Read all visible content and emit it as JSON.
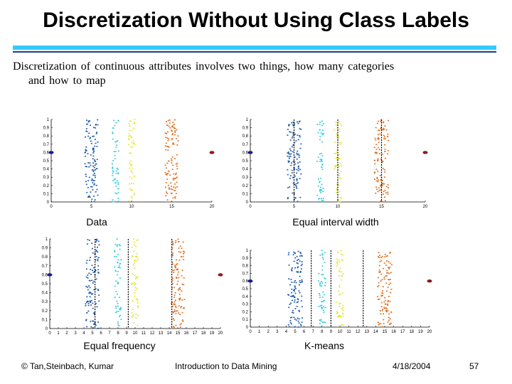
{
  "slide": {
    "title": "Discretization Without Using Class Labels",
    "body_line1": "Discretization of continuous attributes involves two things, how many categories",
    "body_line2": "and how to map"
  },
  "colors": {
    "title_rule_light": "#33ccff",
    "title_rule_dark": "#1e3c8c",
    "blue": "#1f5aa8",
    "cyan": "#33ccdd",
    "yellow": "#e6e633",
    "orange": "#e0701f",
    "outlier_left": "#1a1a8c",
    "outlier_right": "#8c1a1a"
  },
  "chart_data": [
    {
      "type": "scatter",
      "caption": "Data",
      "xlim": [
        0,
        20
      ],
      "ylim": [
        0,
        1
      ],
      "x_ticks": [
        "0",
        "5",
        "10",
        "15",
        "20"
      ],
      "y_ticks": [
        "0",
        "0.1",
        "0.2",
        "0.3",
        "0.4",
        "0.5",
        "0.6",
        "0.7",
        "0.8",
        "0.9",
        "1"
      ],
      "clusters": [
        {
          "center_x": 5,
          "spread": 1.0,
          "color": "blue"
        },
        {
          "center_x": 8,
          "spread": 0.5,
          "color": "cyan"
        },
        {
          "center_x": 10,
          "spread": 0.5,
          "color": "yellow"
        },
        {
          "center_x": 15,
          "spread": 1.0,
          "color": "orange"
        }
      ],
      "outliers": [
        {
          "x": 0,
          "y": 0.6,
          "color": "outlier_left"
        },
        {
          "x": 20,
          "y": 0.6,
          "color": "outlier_right"
        }
      ],
      "split_lines": []
    },
    {
      "type": "scatter",
      "caption": "Equal interval width",
      "xlim": [
        0,
        20
      ],
      "ylim": [
        0,
        1
      ],
      "x_ticks": [
        "0",
        "5",
        "10",
        "15",
        "20"
      ],
      "y_ticks": [
        "0",
        "0.1",
        "0.2",
        "0.3",
        "0.4",
        "0.5",
        "0.6",
        "0.7",
        "0.8",
        "0.9",
        "1"
      ],
      "clusters": [
        {
          "center_x": 5,
          "spread": 1.0,
          "color": "blue"
        },
        {
          "center_x": 8,
          "spread": 0.5,
          "color": "cyan"
        },
        {
          "center_x": 10,
          "spread": 0.5,
          "color": "yellow"
        },
        {
          "center_x": 15,
          "spread": 1.0,
          "color": "orange"
        }
      ],
      "outliers": [
        {
          "x": 0,
          "y": 0.6,
          "color": "outlier_left"
        },
        {
          "x": 20,
          "y": 0.6,
          "color": "outlier_right"
        }
      ],
      "split_lines": [
        5,
        10,
        15
      ]
    },
    {
      "type": "scatter",
      "caption": "Equal frequency",
      "xlim": [
        0,
        20
      ],
      "ylim": [
        0,
        1
      ],
      "x_ticks": [
        "0",
        "1",
        "2",
        "3",
        "4",
        "5",
        "6",
        "7",
        "8",
        "9",
        "10",
        "11",
        "12",
        "13",
        "14",
        "15",
        "16",
        "17",
        "18",
        "19",
        "20"
      ],
      "y_ticks": [
        "0",
        "0.1",
        "0.2",
        "0.3",
        "0.4",
        "0.5",
        "0.6",
        "0.7",
        "0.8",
        "0.9",
        "1"
      ],
      "clusters": [
        {
          "center_x": 5,
          "spread": 1.0,
          "color": "blue"
        },
        {
          "center_x": 8,
          "spread": 0.5,
          "color": "cyan"
        },
        {
          "center_x": 10,
          "spread": 0.5,
          "color": "yellow"
        },
        {
          "center_x": 15,
          "spread": 1.0,
          "color": "orange"
        }
      ],
      "outliers": [
        {
          "x": 0,
          "y": 0.6,
          "color": "outlier_left"
        },
        {
          "x": 20,
          "y": 0.6,
          "color": "outlier_right"
        }
      ],
      "split_lines": [
        5.3,
        9.2,
        14.3
      ]
    },
    {
      "type": "scatter",
      "caption": "K-means",
      "xlim": [
        0,
        20
      ],
      "ylim": [
        0,
        1
      ],
      "x_ticks": [
        "0",
        "1",
        "2",
        "3",
        "4",
        "5",
        "6",
        "7",
        "8",
        "9",
        "10",
        "11",
        "12",
        "13",
        "14",
        "15",
        "16",
        "17",
        "18",
        "19",
        "20"
      ],
      "y_ticks": [
        "0",
        "0.1",
        "0.2",
        "0.3",
        "0.4",
        "0.5",
        "0.6",
        "0.7",
        "0.8",
        "0.9",
        "1"
      ],
      "clusters": [
        {
          "center_x": 5,
          "spread": 1.0,
          "color": "blue"
        },
        {
          "center_x": 8,
          "spread": 0.5,
          "color": "cyan"
        },
        {
          "center_x": 10,
          "spread": 0.5,
          "color": "yellow"
        },
        {
          "center_x": 15,
          "spread": 1.0,
          "color": "orange"
        }
      ],
      "outliers": [
        {
          "x": 0,
          "y": 0.6,
          "color": "outlier_left"
        },
        {
          "x": 20,
          "y": 0.6,
          "color": "outlier_right"
        }
      ],
      "split_lines": [
        6.8,
        9.0,
        12.6
      ]
    }
  ],
  "footer": {
    "copyright": "© Tan,Steinbach, Kumar",
    "course": "Introduction to Data Mining",
    "date": "4/18/2004",
    "page": "57"
  }
}
